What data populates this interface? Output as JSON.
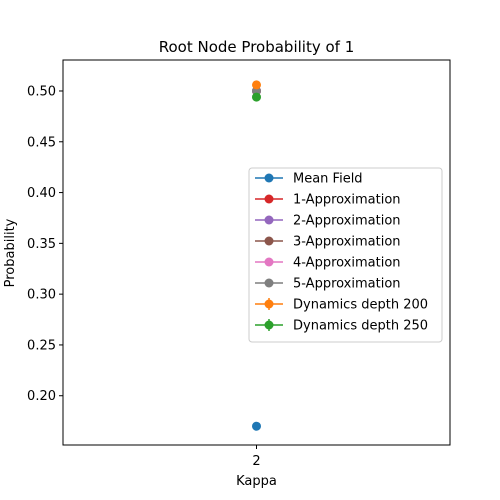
{
  "chart_data": {
    "type": "scatter",
    "title": "Root Node Probability of 1",
    "xlabel": "Kappa",
    "ylabel": "Probability",
    "x_ticks": [
      "2"
    ],
    "y_ticks": [
      0.2,
      0.25,
      0.3,
      0.35,
      0.4,
      0.45,
      0.5
    ],
    "y_tick_labels": [
      "0.20",
      "0.25",
      "0.30",
      "0.35",
      "0.40",
      "0.45",
      "0.50"
    ],
    "xlim": [
      1.95,
      2.05
    ],
    "ylim": [
      0.1515,
      0.5305
    ],
    "grid": false,
    "legend_position": "center-right",
    "series": [
      {
        "name": "Mean Field",
        "color": "#1f77b4",
        "x": [
          2
        ],
        "y": [
          0.17
        ]
      },
      {
        "name": "1-Approximation",
        "color": "#d62728",
        "x": [
          2
        ],
        "y": [
          0.5
        ]
      },
      {
        "name": "2-Approximation",
        "color": "#9467bd",
        "x": [
          2
        ],
        "y": [
          0.5
        ]
      },
      {
        "name": "3-Approximation",
        "color": "#8c564b",
        "x": [
          2
        ],
        "y": [
          0.5
        ]
      },
      {
        "name": "4-Approximation",
        "color": "#e377c2",
        "x": [
          2
        ],
        "y": [
          0.5
        ]
      },
      {
        "name": "5-Approximation",
        "color": "#7f7f7f",
        "x": [
          2
        ],
        "y": [
          0.5
        ]
      },
      {
        "name": "Dynamics depth 200",
        "color": "#ff7f0e",
        "x": [
          2
        ],
        "y": [
          0.506
        ],
        "yerr": [
          0.004
        ]
      },
      {
        "name": "Dynamics depth 250",
        "color": "#2ca02c",
        "x": [
          2
        ],
        "y": [
          0.494
        ],
        "yerr": [
          0.004
        ]
      }
    ]
  }
}
